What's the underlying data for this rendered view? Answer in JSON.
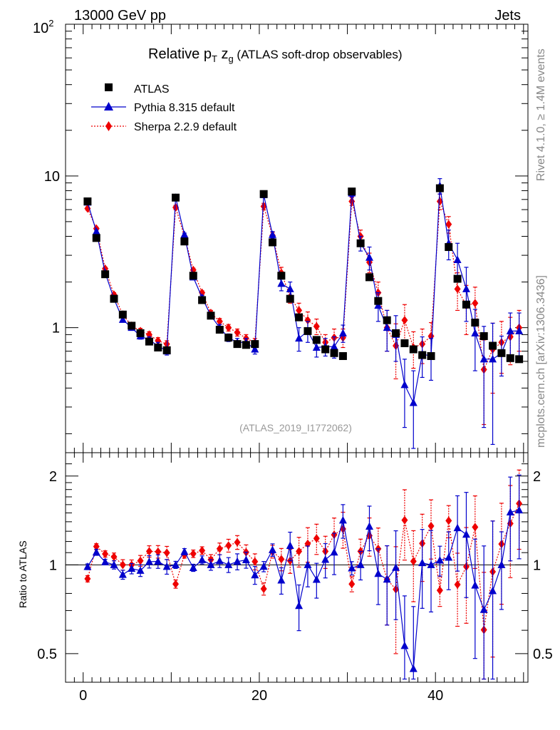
{
  "header": {
    "energy": "13000 GeV pp",
    "process": "Jets"
  },
  "side_labels": {
    "rivet": "Rivet 4.1.0, ≥ 1.4M events",
    "source": "mcplots.cern.ch [arXiv:1306.3436]"
  },
  "chart_data": {
    "type": "line",
    "title": "Relative pT zg (ATLAS soft-drop observables)",
    "title_parts": {
      "main": "Relative p",
      "sub_T": "T",
      "mid": " z",
      "sub_g": "g",
      "rest": " (ATLAS soft-drop observables)"
    },
    "analysis_id": "(ATLAS_2019_I1772062)",
    "xlabel": "",
    "ylabel": "",
    "xlim": [
      -2,
      50.5
    ],
    "ylim": [
      0.15,
      100
    ],
    "yscale": "log",
    "x_ticks": [
      "0",
      "20",
      "40"
    ],
    "y_ticks": [
      "1",
      "10",
      "10^2"
    ],
    "legend_position": "top-left",
    "x": [
      0.5,
      1.5,
      2.5,
      3.5,
      4.5,
      5.5,
      6.5,
      7.5,
      8.5,
      9.5,
      10.5,
      11.5,
      12.5,
      13.5,
      14.5,
      15.5,
      16.5,
      17.5,
      18.5,
      19.5,
      20.5,
      21.5,
      22.5,
      23.5,
      24.5,
      25.5,
      26.5,
      27.5,
      28.5,
      29.5,
      30.5,
      31.5,
      32.5,
      33.5,
      34.5,
      35.5,
      36.5,
      37.5,
      38.5,
      39.5,
      40.5,
      41.5,
      42.5,
      43.5,
      44.5,
      45.5,
      46.5,
      47.5,
      48.5,
      49.5
    ],
    "series": [
      {
        "name": "ATLAS",
        "style": "markers",
        "color": "#000000",
        "values": [
          6.8,
          3.9,
          2.25,
          1.55,
          1.22,
          1.03,
          0.92,
          0.81,
          0.74,
          0.71,
          7.2,
          3.7,
          2.2,
          1.52,
          1.2,
          0.97,
          0.86,
          0.78,
          0.77,
          0.78,
          7.6,
          3.65,
          2.2,
          1.55,
          1.17,
          0.95,
          0.83,
          0.72,
          0.68,
          0.65,
          7.9,
          3.6,
          2.15,
          1.5,
          1.12,
          0.92,
          0.79,
          0.72,
          0.66,
          0.65,
          8.3,
          3.4,
          2.1,
          1.42,
          1.08,
          0.88,
          0.76,
          0.68,
          0.63,
          0.62
        ]
      },
      {
        "name": "Pythia 8.315 default",
        "style": "line-triangles",
        "color": "#0000cc",
        "values": [
          6.7,
          4.3,
          2.3,
          1.55,
          1.13,
          1.0,
          0.88,
          0.83,
          0.76,
          0.7,
          7.2,
          4.1,
          2.15,
          1.58,
          1.2,
          1.0,
          0.86,
          0.8,
          0.8,
          0.72,
          7.5,
          4.1,
          1.95,
          1.8,
          0.85,
          0.95,
          0.74,
          0.75,
          0.75,
          0.92,
          7.7,
          3.6,
          2.9,
          1.4,
          1.0,
          0.9,
          0.42,
          0.32,
          0.67,
          0.65,
          8.6,
          3.6,
          2.8,
          1.8,
          0.92,
          0.62,
          0.62,
          0.68,
          0.95,
          0.95
        ],
        "errors": [
          0.15,
          0.1,
          0.05,
          0.05,
          0.04,
          0.04,
          0.04,
          0.04,
          0.04,
          0.04,
          0.2,
          0.1,
          0.06,
          0.05,
          0.05,
          0.05,
          0.05,
          0.05,
          0.05,
          0.05,
          0.3,
          0.2,
          0.2,
          0.2,
          0.15,
          0.15,
          0.1,
          0.1,
          0.12,
          0.12,
          0.4,
          0.4,
          0.5,
          0.3,
          0.3,
          0.3,
          0.2,
          0.2,
          0.2,
          0.2,
          1.0,
          0.8,
          0.8,
          0.7,
          0.4,
          0.4,
          0.45,
          0.2,
          0.3,
          0.3
        ]
      },
      {
        "name": "Sherpa 2.2.9 default",
        "style": "dotted-diamonds",
        "color": "#ee0000",
        "values": [
          6.1,
          4.5,
          2.45,
          1.65,
          1.22,
          1.03,
          0.95,
          0.9,
          0.82,
          0.78,
          6.2,
          4.0,
          2.4,
          1.7,
          1.25,
          1.1,
          1.0,
          0.93,
          0.85,
          0.8,
          6.3,
          4.05,
          2.3,
          1.6,
          1.3,
          1.12,
          1.02,
          0.8,
          0.86,
          0.86,
          6.8,
          4.0,
          2.7,
          1.7,
          1.0,
          0.76,
          1.12,
          0.74,
          0.78,
          0.88,
          6.8,
          4.8,
          1.8,
          1.4,
          1.45,
          0.53,
          0.72,
          0.8,
          0.87,
          1.0
        ],
        "errors": [
          0.15,
          0.1,
          0.06,
          0.05,
          0.05,
          0.04,
          0.04,
          0.04,
          0.04,
          0.04,
          0.2,
          0.1,
          0.07,
          0.05,
          0.05,
          0.05,
          0.05,
          0.05,
          0.05,
          0.05,
          0.3,
          0.2,
          0.2,
          0.15,
          0.15,
          0.15,
          0.12,
          0.1,
          0.12,
          0.12,
          0.4,
          0.4,
          0.4,
          0.3,
          0.3,
          0.3,
          0.3,
          0.2,
          0.2,
          0.2,
          0.8,
          0.6,
          0.5,
          0.5,
          0.4,
          0.3,
          0.35,
          0.3,
          0.3,
          0.3
        ]
      }
    ],
    "ratio": {
      "ylabel": "Ratio to ATLAS",
      "ylim": [
        0.4,
        2.4
      ],
      "yscale": "log",
      "y_ticks": [
        "0.5",
        "1",
        "2"
      ]
    }
  }
}
